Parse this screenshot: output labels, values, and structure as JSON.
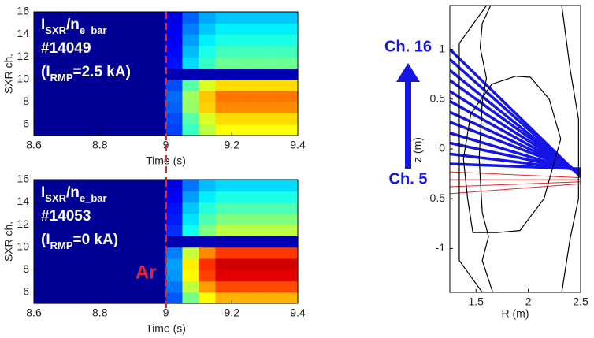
{
  "chart_data": [
    {
      "type": "heatmap",
      "xlabel": "Time (s)",
      "ylabel": "SXR ch.",
      "xlim": [
        8.6,
        9.4
      ],
      "xticks": [
        8.6,
        8.8,
        9,
        9.2,
        9.4
      ],
      "ylim": [
        5,
        16
      ],
      "yticks": [
        6,
        8,
        10,
        12,
        14,
        16
      ],
      "clim": [
        0,
        1
      ],
      "colormap": "jet",
      "xbins": [
        8.6,
        8.65,
        8.7,
        8.75,
        8.8,
        8.85,
        8.9,
        8.95,
        9,
        9.05,
        9.1,
        9.15,
        9.2,
        9.25,
        9.3,
        9.35,
        9.4
      ],
      "ybins": [
        5,
        6,
        7,
        8,
        9,
        10,
        11,
        12,
        13,
        14,
        15,
        16
      ],
      "values": [
        [
          0.02,
          0.02,
          0.02,
          0.02,
          0.02,
          0.02,
          0.02,
          0.02,
          0.19,
          0.43,
          0.56,
          0.62,
          0.62,
          0.62,
          0.62,
          0.62
        ],
        [
          0.02,
          0.02,
          0.02,
          0.02,
          0.02,
          0.02,
          0.02,
          0.02,
          0.2,
          0.46,
          0.59,
          0.66,
          0.66,
          0.66,
          0.66,
          0.66
        ],
        [
          0.02,
          0.02,
          0.02,
          0.02,
          0.02,
          0.02,
          0.02,
          0.02,
          0.22,
          0.52,
          0.67,
          0.74,
          0.74,
          0.74,
          0.74,
          0.74
        ],
        [
          0.02,
          0.02,
          0.02,
          0.02,
          0.02,
          0.02,
          0.02,
          0.02,
          0.23,
          0.53,
          0.68,
          0.76,
          0.76,
          0.76,
          0.76,
          0.76
        ],
        [
          0.02,
          0.02,
          0.02,
          0.02,
          0.02,
          0.02,
          0.02,
          0.02,
          0.2,
          0.46,
          0.59,
          0.66,
          0.66,
          0.66,
          0.66,
          0.66
        ],
        [
          0.02,
          0.02,
          0.02,
          0.02,
          0.02,
          0.02,
          0.02,
          0.02,
          0.05,
          0.05,
          0.05,
          0.05,
          0.05,
          0.05,
          0.05,
          0.05
        ],
        [
          0.02,
          0.02,
          0.02,
          0.02,
          0.02,
          0.02,
          0.02,
          0.02,
          0.14,
          0.34,
          0.43,
          0.48,
          0.48,
          0.48,
          0.48,
          0.48
        ],
        [
          0.02,
          0.02,
          0.02,
          0.02,
          0.02,
          0.02,
          0.02,
          0.02,
          0.13,
          0.31,
          0.4,
          0.44,
          0.44,
          0.44,
          0.44,
          0.44
        ],
        [
          0.02,
          0.02,
          0.02,
          0.02,
          0.02,
          0.02,
          0.02,
          0.02,
          0.12,
          0.28,
          0.36,
          0.4,
          0.4,
          0.4,
          0.4,
          0.4
        ],
        [
          0.02,
          0.02,
          0.02,
          0.02,
          0.02,
          0.02,
          0.02,
          0.02,
          0.11,
          0.25,
          0.32,
          0.36,
          0.36,
          0.36,
          0.36,
          0.36
        ],
        [
          0.02,
          0.02,
          0.02,
          0.02,
          0.02,
          0.02,
          0.02,
          0.02,
          0.1,
          0.22,
          0.29,
          0.32,
          0.32,
          0.32,
          0.32,
          0.32
        ]
      ],
      "label_lines": [
        [
          "I",
          "SXR",
          "/n",
          "e_bar"
        ],
        [
          "#14049"
        ],
        [
          "(I",
          "RMP",
          "=2.5 kA)"
        ]
      ],
      "vline": 9,
      "vline_color": "#e8242b"
    },
    {
      "type": "heatmap",
      "xlabel": "Time (s)",
      "ylabel": "SXR ch.",
      "xlim": [
        8.6,
        9.4
      ],
      "xticks": [
        8.6,
        8.8,
        9,
        9.2,
        9.4
      ],
      "ylim": [
        5,
        16
      ],
      "yticks": [
        6,
        8,
        10,
        12,
        14,
        16
      ],
      "clim": [
        0,
        1
      ],
      "colormap": "jet",
      "xbins": [
        8.6,
        8.65,
        8.7,
        8.75,
        8.8,
        8.85,
        8.9,
        8.95,
        9,
        9.05,
        9.1,
        9.15,
        9.2,
        9.25,
        9.3,
        9.35,
        9.4
      ],
      "ybins": [
        5,
        6,
        7,
        8,
        9,
        10,
        11,
        12,
        13,
        14,
        15,
        16
      ],
      "values": [
        [
          0.02,
          0.02,
          0.02,
          0.02,
          0.02,
          0.02,
          0.02,
          0.02,
          0.21,
          0.49,
          0.63,
          0.7,
          0.7,
          0.7,
          0.7,
          0.7
        ],
        [
          0.02,
          0.02,
          0.02,
          0.02,
          0.02,
          0.02,
          0.02,
          0.02,
          0.24,
          0.56,
          0.72,
          0.8,
          0.8,
          0.8,
          0.8,
          0.8
        ],
        [
          0.02,
          0.02,
          0.02,
          0.02,
          0.02,
          0.02,
          0.02,
          0.02,
          0.27,
          0.63,
          0.81,
          0.9,
          0.9,
          0.9,
          0.9,
          0.9
        ],
        [
          0.02,
          0.02,
          0.02,
          0.02,
          0.02,
          0.02,
          0.02,
          0.02,
          0.28,
          0.64,
          0.83,
          0.92,
          0.92,
          0.92,
          0.92,
          0.92
        ],
        [
          0.02,
          0.02,
          0.02,
          0.02,
          0.02,
          0.02,
          0.02,
          0.02,
          0.25,
          0.57,
          0.74,
          0.82,
          0.82,
          0.82,
          0.82,
          0.82
        ],
        [
          0.02,
          0.02,
          0.02,
          0.02,
          0.02,
          0.02,
          0.02,
          0.02,
          0.05,
          0.05,
          0.05,
          0.05,
          0.05,
          0.05,
          0.05,
          0.05
        ],
        [
          0.02,
          0.02,
          0.02,
          0.02,
          0.02,
          0.02,
          0.02,
          0.02,
          0.17,
          0.39,
          0.5,
          0.56,
          0.56,
          0.56,
          0.56,
          0.56
        ],
        [
          0.02,
          0.02,
          0.02,
          0.02,
          0.02,
          0.02,
          0.02,
          0.02,
          0.15,
          0.35,
          0.45,
          0.5,
          0.5,
          0.5,
          0.5,
          0.5
        ],
        [
          0.02,
          0.02,
          0.02,
          0.02,
          0.02,
          0.02,
          0.02,
          0.02,
          0.14,
          0.32,
          0.41,
          0.45,
          0.45,
          0.45,
          0.45,
          0.45
        ],
        [
          0.02,
          0.02,
          0.02,
          0.02,
          0.02,
          0.02,
          0.02,
          0.02,
          0.12,
          0.28,
          0.36,
          0.4,
          0.4,
          0.4,
          0.4,
          0.4
        ],
        [
          0.02,
          0.02,
          0.02,
          0.02,
          0.02,
          0.02,
          0.02,
          0.02,
          0.1,
          0.24,
          0.31,
          0.34,
          0.34,
          0.34,
          0.34,
          0.34
        ]
      ],
      "label_lines": [
        [
          "I",
          "SXR",
          "/n",
          "e_bar"
        ],
        [
          "#14053"
        ],
        [
          "(I",
          "RMP",
          "=0 kA)"
        ]
      ],
      "vline": 9,
      "vline_color": "#e8242b",
      "vline_label": "Ar"
    },
    {
      "type": "line",
      "xlabel": "R (m)",
      "ylabel": "z (m)",
      "xlim": [
        1.25,
        2.5
      ],
      "xticks": [
        1.5,
        2,
        2.5
      ],
      "ylim": [
        -1.44,
        1.44
      ],
      "yticks": [
        -1,
        -0.5,
        0,
        0.5,
        1
      ],
      "annotations": [
        "Ch. 16",
        "Ch. 5"
      ],
      "annotation_color": "#1515e6",
      "series": [
        {
          "color": "#1515e6",
          "linewidth": 3.5,
          "x": [
            1.25,
            2.5
          ],
          "values": [
            1.0,
            -0.28
          ]
        },
        {
          "color": "#1515e6",
          "linewidth": 3.5,
          "x": [
            1.25,
            2.5
          ],
          "values": [
            0.9,
            -0.27
          ]
        },
        {
          "color": "#1515e6",
          "linewidth": 3.5,
          "x": [
            1.25,
            2.5
          ],
          "values": [
            0.79,
            -0.27
          ]
        },
        {
          "color": "#1515e6",
          "linewidth": 3.5,
          "x": [
            1.25,
            2.5
          ],
          "values": [
            0.69,
            -0.26
          ]
        },
        {
          "color": "#1515e6",
          "linewidth": 3.5,
          "x": [
            1.25,
            2.5
          ],
          "values": [
            0.58,
            -0.25
          ]
        },
        {
          "color": "#1515e6",
          "linewidth": 3.5,
          "x": [
            1.25,
            2.5
          ],
          "values": [
            0.48,
            -0.25
          ]
        },
        {
          "color": "#1515e6",
          "linewidth": 3.5,
          "x": [
            1.25,
            2.5
          ],
          "values": [
            0.37,
            -0.24
          ]
        },
        {
          "color": "#1515e6",
          "linewidth": 3.5,
          "x": [
            1.25,
            2.5
          ],
          "values": [
            0.27,
            -0.23
          ]
        },
        {
          "color": "#1515e6",
          "linewidth": 3.5,
          "x": [
            1.25,
            2.5
          ],
          "values": [
            0.16,
            -0.23
          ]
        },
        {
          "color": "#1515e6",
          "linewidth": 3.5,
          "x": [
            1.25,
            2.5
          ],
          "values": [
            0.06,
            -0.22
          ]
        },
        {
          "color": "#1515e6",
          "linewidth": 3.5,
          "x": [
            1.25,
            2.5
          ],
          "values": [
            -0.05,
            -0.21
          ]
        },
        {
          "color": "#1515e6",
          "linewidth": 3.5,
          "x": [
            1.25,
            2.5
          ],
          "values": [
            -0.15,
            -0.2
          ]
        },
        {
          "color": "#e8242b",
          "linewidth": 1,
          "x": [
            1.25,
            2.5
          ],
          "values": [
            -0.23,
            -0.29
          ]
        },
        {
          "color": "#e8242b",
          "linewidth": 1,
          "x": [
            1.25,
            2.5
          ],
          "values": [
            -0.31,
            -0.31
          ]
        },
        {
          "color": "#e8242b",
          "linewidth": 1,
          "x": [
            1.25,
            2.5
          ],
          "values": [
            -0.38,
            -0.33
          ]
        },
        {
          "color": "#e8242b",
          "linewidth": 1,
          "x": [
            1.25,
            2.5
          ],
          "values": [
            -0.45,
            -0.35
          ]
        },
        {
          "color": "#000000",
          "linewidth": 1.2,
          "x": [
            1.6,
            1.34,
            1.34,
            1.56
          ],
          "values": [
            1.44,
            1.06,
            -1.12,
            -1.44
          ]
        },
        {
          "color": "#000000",
          "linewidth": 1.2,
          "x": [
            1.64,
            1.56,
            1.54,
            1.6,
            1.56,
            1.53,
            1.56,
            1.62,
            1.56,
            1.66
          ],
          "values": [
            1.44,
            1.26,
            1.02,
            0.71,
            0.47,
            -0.09,
            -0.64,
            -0.88,
            -1.12,
            -1.44
          ]
        },
        {
          "color": "#000000",
          "linewidth": 1.2,
          "x": [
            2.32,
            2.4,
            2.48,
            2.48,
            2.4,
            2.32
          ],
          "values": [
            1.44,
            0.8,
            0.3,
            -0.5,
            -0.9,
            -1.44
          ]
        },
        {
          "color": "#000000",
          "linewidth": 1.2,
          "x": [
            1.88,
            1.65,
            1.45,
            1.38,
            1.42,
            1.47,
            1.7,
            1.92,
            2.15,
            2.31,
            2.2,
            2.02,
            1.88
          ],
          "values": [
            0.73,
            0.65,
            0.35,
            -0.1,
            -0.5,
            -0.84,
            -0.84,
            -0.82,
            -0.5,
            0.1,
            0.5,
            0.72,
            0.73
          ]
        }
      ]
    }
  ]
}
